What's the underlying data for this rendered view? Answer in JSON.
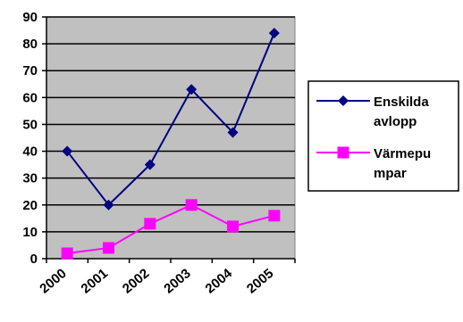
{
  "chart_data": {
    "type": "line",
    "title": "",
    "xlabel": "",
    "ylabel": "",
    "categories": [
      "2000",
      "2001",
      "2002",
      "2003",
      "2004",
      "2005"
    ],
    "ylim": [
      0,
      90
    ],
    "yticks": [
      "0",
      "10",
      "20",
      "30",
      "40",
      "50",
      "60",
      "70",
      "80",
      "90"
    ],
    "grid": true,
    "plot_background": "#c0c0c0",
    "legend_position": "right",
    "series": [
      {
        "name": "Enskilda avlopp",
        "name_lines": [
          "Enskilda",
          "avlopp"
        ],
        "values": [
          40,
          20,
          35,
          63,
          47,
          84
        ],
        "color": "#000080",
        "marker": "diamond"
      },
      {
        "name": "Värmepumpar",
        "name_lines": [
          "Värmepu",
          "mpar"
        ],
        "values": [
          2,
          4,
          13,
          20,
          12,
          16
        ],
        "color": "#ff00ff",
        "marker": "square"
      }
    ]
  }
}
